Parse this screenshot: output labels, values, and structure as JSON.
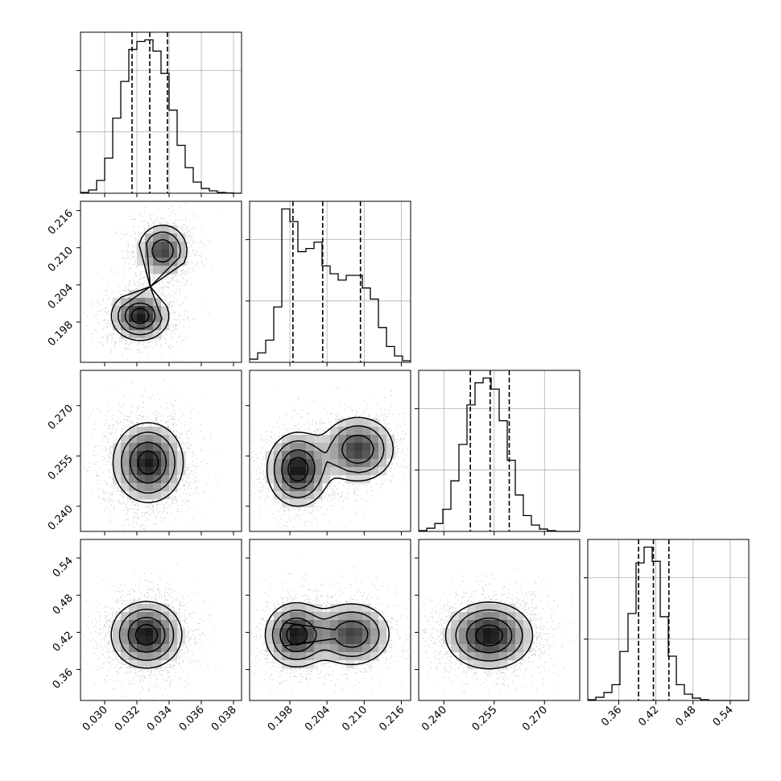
{
  "chart_data": {
    "type": "corner",
    "grid": true,
    "parameters": [
      {
        "ticks": [
          0.03,
          0.032,
          0.034,
          0.036,
          0.038
        ],
        "tick_labels": [
          "0.030",
          "0.032",
          "0.034",
          "0.036",
          "0.038"
        ],
        "range": [
          0.0285,
          0.0385
        ]
      },
      {
        "ticks": [
          0.198,
          0.204,
          0.21,
          0.216
        ],
        "tick_labels": [
          "0.198",
          "0.204",
          "0.210",
          "0.216"
        ],
        "range": [
          0.1915,
          0.2175
        ]
      },
      {
        "ticks": [
          0.24,
          0.255,
          0.27
        ],
        "tick_labels": [
          "0.240",
          "0.255",
          "0.270"
        ],
        "range": [
          0.2325,
          0.2805
        ]
      },
      {
        "ticks": [
          0.36,
          0.42,
          0.48,
          0.54
        ],
        "tick_labels": [
          "0.36",
          "0.42",
          "0.48",
          "0.54"
        ],
        "range": [
          0.31,
          0.57
        ]
      }
    ],
    "histograms": [
      {
        "param": 0,
        "quantiles": [
          0.0317,
          0.0328,
          0.0339
        ],
        "bin_edges": [
          0.0285,
          0.029,
          0.0295,
          0.03,
          0.0305,
          0.031,
          0.0315,
          0.032,
          0.0325,
          0.033,
          0.0335,
          0.034,
          0.0345,
          0.035,
          0.0355,
          0.036,
          0.0365,
          0.037,
          0.0375,
          0.038,
          0.0385
        ],
        "counts": [
          0.005,
          0.02,
          0.08,
          0.22,
          0.47,
          0.7,
          0.9,
          0.95,
          0.96,
          0.89,
          0.75,
          0.52,
          0.3,
          0.16,
          0.07,
          0.03,
          0.015,
          0.005,
          0.002,
          0
        ]
      },
      {
        "param": 1,
        "quantiles": [
          0.1985,
          0.2033,
          0.2094
        ],
        "bin_edges": [
          0.1915,
          0.1928,
          0.1941,
          0.1954,
          0.1967,
          0.198,
          0.1993,
          0.2006,
          0.2019,
          0.2032,
          0.2045,
          0.2058,
          0.2071,
          0.2084,
          0.2097,
          0.211,
          0.2123,
          0.2136,
          0.2149,
          0.2162,
          0.2175
        ],
        "counts": [
          0.02,
          0.06,
          0.14,
          0.35,
          0.97,
          0.89,
          0.7,
          0.72,
          0.76,
          0.61,
          0.56,
          0.52,
          0.55,
          0.55,
          0.47,
          0.4,
          0.22,
          0.1,
          0.04,
          0.01
        ]
      },
      {
        "param": 2,
        "quantiles": [
          0.2479,
          0.2538,
          0.2595
        ],
        "bin_edges": [
          0.2325,
          0.2349,
          0.2373,
          0.2397,
          0.2421,
          0.2445,
          0.2469,
          0.2493,
          0.2517,
          0.2541,
          0.2565,
          0.2589,
          0.2613,
          0.2637,
          0.2661,
          0.2685,
          0.2709,
          0.2733,
          0.2757,
          0.2781,
          0.2805
        ],
        "counts": [
          0.005,
          0.02,
          0.05,
          0.14,
          0.32,
          0.55,
          0.8,
          0.94,
          0.97,
          0.9,
          0.7,
          0.45,
          0.23,
          0.1,
          0.04,
          0.015,
          0.005,
          0,
          0,
          0
        ]
      },
      {
        "param": 3,
        "quantiles": [
          0.392,
          0.416,
          0.441
        ],
        "bin_edges": [
          0.31,
          0.323,
          0.336,
          0.349,
          0.362,
          0.375,
          0.388,
          0.401,
          0.414,
          0.427,
          0.44,
          0.453,
          0.466,
          0.479,
          0.492,
          0.505,
          0.518,
          0.531,
          0.544,
          0.557,
          0.57
        ],
        "counts": [
          0.005,
          0.02,
          0.05,
          0.1,
          0.31,
          0.55,
          0.87,
          0.97,
          0.88,
          0.53,
          0.28,
          0.1,
          0.04,
          0.015,
          0.005,
          0,
          0,
          0,
          0,
          0
        ]
      }
    ],
    "pair_blobs": [
      {
        "row": 1,
        "col": 0,
        "modes": [
          {
            "mean": [
              0.0322,
              0.199
            ],
            "sd": [
              0.0009,
              0.002
            ],
            "w": 0.55
          },
          {
            "mean": [
              0.0336,
              0.2095
            ],
            "sd": [
              0.0008,
              0.0022
            ],
            "w": 0.45
          }
        ]
      },
      {
        "row": 2,
        "col": 0,
        "modes": [
          {
            "mean": [
              0.0327,
              0.253
            ],
            "sd": [
              0.0011,
              0.006
            ],
            "w": 1.0
          }
        ]
      },
      {
        "row": 2,
        "col": 1,
        "modes": [
          {
            "mean": [
              0.1993,
              0.251
            ],
            "sd": [
              0.0025,
              0.0055
            ],
            "w": 0.55
          },
          {
            "mean": [
              0.209,
              0.257
            ],
            "sd": [
              0.003,
              0.005
            ],
            "w": 0.45
          }
        ]
      },
      {
        "row": 3,
        "col": 0,
        "modes": [
          {
            "mean": [
              0.0326,
              0.416
            ],
            "sd": [
              0.0011,
              0.027
            ],
            "w": 1.0
          }
        ]
      },
      {
        "row": 3,
        "col": 1,
        "modes": [
          {
            "mean": [
              0.199,
              0.416
            ],
            "sd": [
              0.0025,
              0.026
            ],
            "w": 0.55
          },
          {
            "mean": [
              0.208,
              0.417
            ],
            "sd": [
              0.0032,
              0.026
            ],
            "w": 0.45
          }
        ]
      },
      {
        "row": 3,
        "col": 2,
        "modes": [
          {
            "mean": [
              0.2535,
              0.415
            ],
            "sd": [
              0.0065,
              0.027
            ],
            "w": 1.0
          }
        ]
      }
    ]
  }
}
